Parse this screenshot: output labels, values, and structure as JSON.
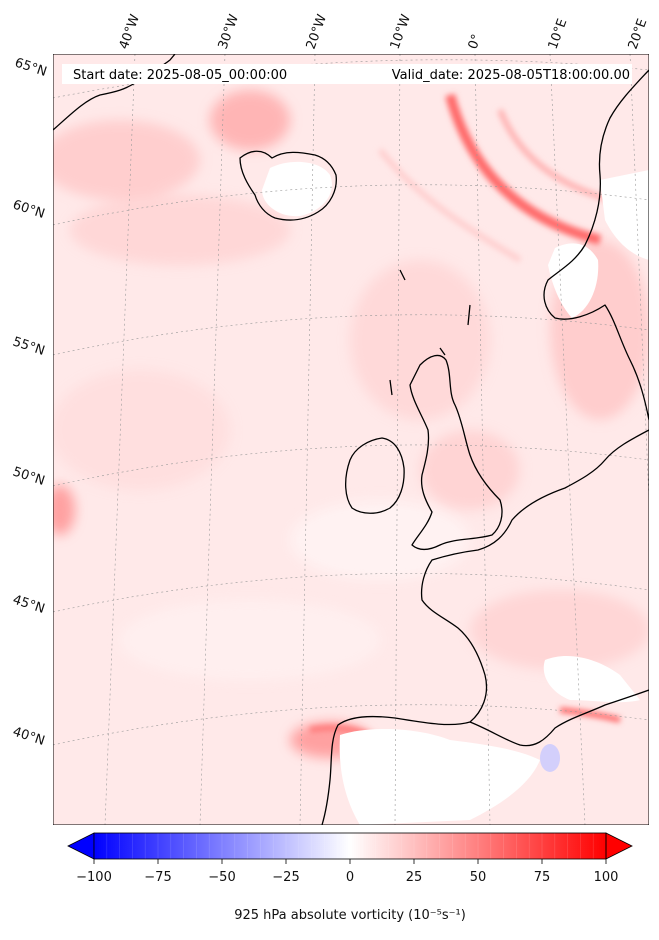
{
  "header": {
    "start_date": "Start date: 2025-08-05_00:00:00",
    "valid_date": "Valid_date: 2025-08-05T18:00:00.00"
  },
  "graticule": {
    "lon_labels": [
      "40°W",
      "30°W",
      "20°W",
      "10°W",
      "0°",
      "10°E",
      "20°E"
    ],
    "lat_labels": [
      "65°N",
      "60°N",
      "55°N",
      "50°N",
      "45°N",
      "40°N"
    ]
  },
  "colorbar": {
    "min": -100,
    "max": 100,
    "ticks": [
      -100,
      -75,
      -50,
      -25,
      0,
      25,
      50,
      75,
      100
    ],
    "tick_labels": [
      "−100",
      "−75",
      "−50",
      "−25",
      "0",
      "25",
      "50",
      "75",
      "100"
    ],
    "label": "925 hPa absolute vorticity (10⁻⁵s⁻¹)",
    "colors": {
      "neg": "#0000ff",
      "zero": "#ffffff",
      "pos": "#ff0000"
    },
    "extend": "both"
  },
  "map": {
    "field": "925 hPa absolute vorticity",
    "background_color": "#ffeaea",
    "coastline_color": "#000000",
    "gridline_style": "dotted grey"
  }
}
